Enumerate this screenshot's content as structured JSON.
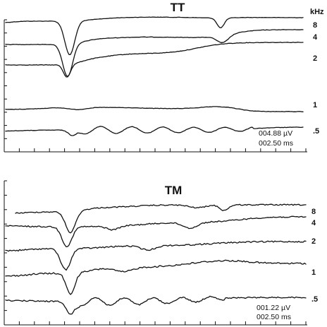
{
  "chart_data": [
    {
      "type": "line",
      "title": "TT",
      "unit_label": "kHz",
      "series": [
        {
          "name": "8",
          "color": "#111111"
        },
        {
          "name": "4",
          "color": "#111111"
        },
        {
          "name": "2",
          "color": "#111111"
        },
        {
          "name": "1",
          "color": "#111111"
        },
        {
          "name": ".5",
          "color": "#111111"
        }
      ],
      "scale_amplitude": "004.88 µV",
      "scale_time": "002.50 ms",
      "x_ticks": 20,
      "y_ticks": 11,
      "grid": false
    },
    {
      "type": "line",
      "title": "TM",
      "series": [
        {
          "name": "8",
          "color": "#111111"
        },
        {
          "name": "4",
          "color": "#111111"
        },
        {
          "name": "2",
          "color": "#111111"
        },
        {
          "name": "1",
          "color": "#111111"
        },
        {
          "name": ".5",
          "color": "#111111"
        }
      ],
      "scale_amplitude": "001.22 µV",
      "scale_time": "002.50 ms",
      "x_ticks": 20,
      "y_ticks": 11,
      "grid": false
    }
  ]
}
